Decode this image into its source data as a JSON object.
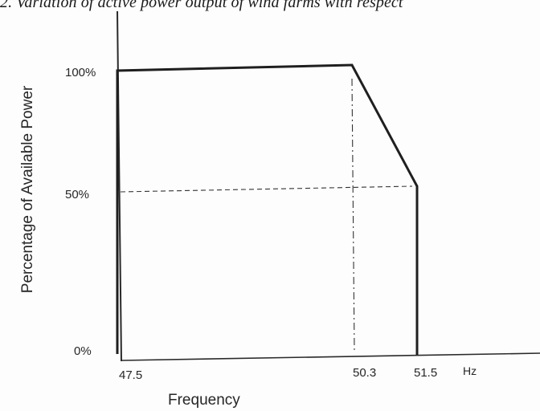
{
  "chart_data": {
    "type": "line",
    "title": "2. Variation of active power output of wind farms with respect",
    "xlabel": "Frequency",
    "ylabel": "Percentage of Available Power",
    "x_unit": "Hz",
    "x_ticks": [
      "47.5",
      "50.3",
      "51.5"
    ],
    "y_ticks": [
      "100%",
      "50%",
      "0%"
    ],
    "xlim": [
      47.5,
      52.5
    ],
    "ylim": [
      0,
      100
    ],
    "grid": false,
    "series": [
      {
        "x": [
          47.5,
          47.5,
          50.3,
          51.5,
          51.5
        ],
        "y": [
          0,
          100,
          100,
          50,
          0
        ]
      }
    ],
    "reference_lines": [
      {
        "style": "dash-dot",
        "orientation": "vertical",
        "x": 50.3,
        "y_range": [
          0,
          100
        ]
      },
      {
        "style": "dashed",
        "orientation": "horizontal",
        "y": 50,
        "x_range": [
          47.5,
          51.5
        ]
      }
    ],
    "colors": {
      "line": "#1f1f1f",
      "axis": "#2a2a2a",
      "text": "#262626"
    }
  }
}
